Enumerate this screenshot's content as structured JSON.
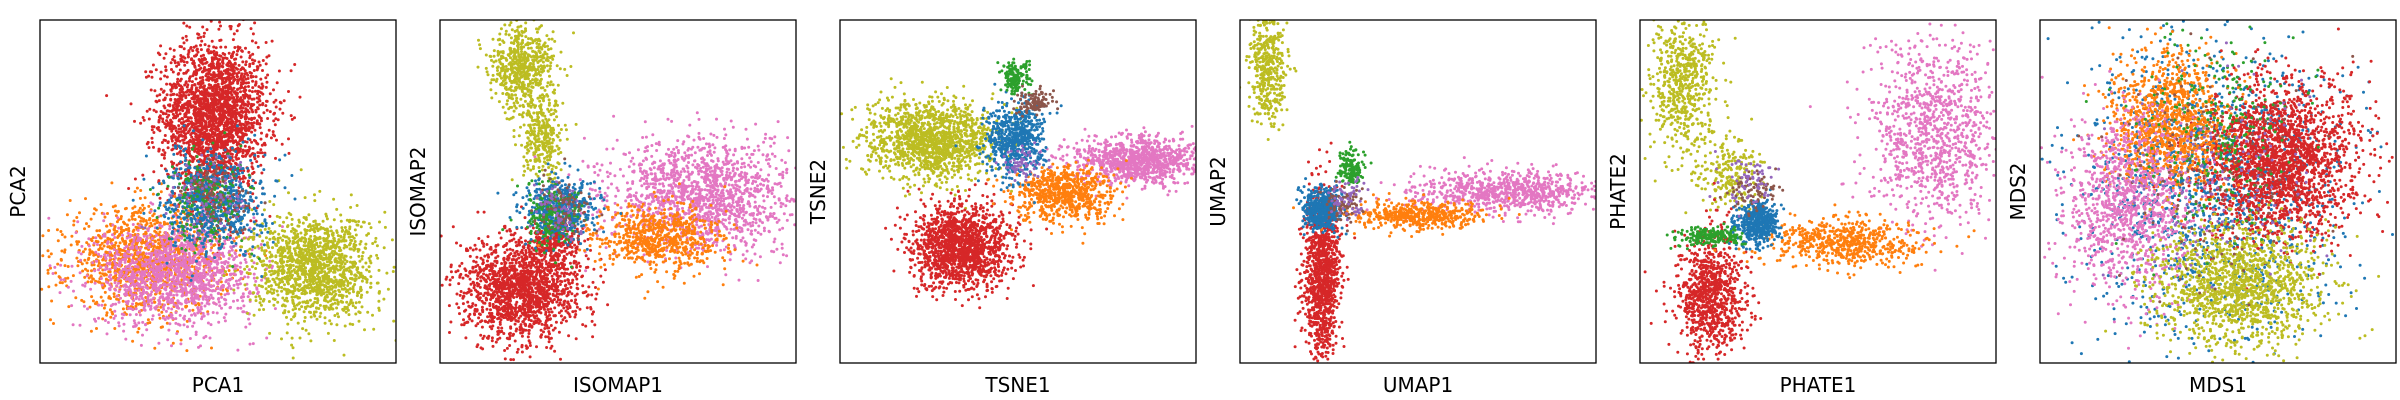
{
  "chart_data": [
    {
      "type": "scatter",
      "xlabel": "PCA1",
      "ylabel": "PCA2",
      "xlim": [
        0,
        10
      ],
      "ylim": [
        0,
        10
      ],
      "ticks": "none",
      "grid": false,
      "series": [
        {
          "color": "#d62728",
          "clusters": [
            {
              "cx": 4.9,
              "cy": 7.3,
              "sx": 0.75,
              "sy": 1.05,
              "n": 2200
            },
            {
              "cx": 4.8,
              "cy": 5.2,
              "sx": 0.5,
              "sy": 0.8,
              "n": 250
            }
          ]
        },
        {
          "color": "#ff7f0e",
          "clusters": [
            {
              "cx": 3.0,
              "cy": 3.0,
              "sx": 1.1,
              "sy": 0.75,
              "n": 1300
            }
          ]
        },
        {
          "color": "#e377c2",
          "clusters": [
            {
              "cx": 3.8,
              "cy": 2.6,
              "sx": 1.1,
              "sy": 0.75,
              "n": 1400
            }
          ]
        },
        {
          "color": "#bcbd22",
          "clusters": [
            {
              "cx": 7.7,
              "cy": 2.8,
              "sx": 0.85,
              "sy": 0.75,
              "n": 1400
            }
          ]
        },
        {
          "color": "#1f77b4",
          "clusters": [
            {
              "cx": 4.9,
              "cy": 4.7,
              "sx": 0.7,
              "sy": 0.7,
              "n": 700
            }
          ]
        },
        {
          "color": "#2ca02c",
          "clusters": [
            {
              "cx": 4.7,
              "cy": 4.8,
              "sx": 0.6,
              "sy": 0.7,
              "n": 180
            }
          ]
        },
        {
          "color": "#8c564b",
          "clusters": [
            {
              "cx": 5.0,
              "cy": 4.8,
              "sx": 0.5,
              "sy": 0.6,
              "n": 100
            }
          ]
        },
        {
          "color": "#9467bd",
          "clusters": [
            {
              "cx": 4.8,
              "cy": 4.9,
              "sx": 0.6,
              "sy": 0.6,
              "n": 80
            }
          ]
        }
      ]
    },
    {
      "type": "scatter",
      "xlabel": "ISOMAP1",
      "ylabel": "ISOMAP2",
      "xlim": [
        0,
        10
      ],
      "ylim": [
        0,
        10
      ],
      "ticks": "none",
      "grid": false,
      "series": [
        {
          "color": "#bcbd22",
          "clusters": [
            {
              "cx": 2.3,
              "cy": 8.6,
              "sx": 0.45,
              "sy": 0.6,
              "n": 600
            },
            {
              "cx": 2.9,
              "cy": 6.5,
              "sx": 0.3,
              "sy": 0.6,
              "n": 300
            }
          ]
        },
        {
          "color": "#d62728",
          "clusters": [
            {
              "cx": 2.3,
              "cy": 2.2,
              "sx": 0.8,
              "sy": 0.75,
              "n": 1600
            },
            {
              "cx": 3.3,
              "cy": 3.5,
              "sx": 0.35,
              "sy": 0.4,
              "n": 250
            }
          ]
        },
        {
          "color": "#e377c2",
          "clusters": [
            {
              "cx": 7.4,
              "cy": 4.9,
              "sx": 1.3,
              "sy": 0.8,
              "n": 1500
            }
          ]
        },
        {
          "color": "#ff7f0e",
          "clusters": [
            {
              "cx": 6.1,
              "cy": 3.6,
              "sx": 0.9,
              "sy": 0.5,
              "n": 700
            }
          ]
        },
        {
          "color": "#1f77b4",
          "clusters": [
            {
              "cx": 3.4,
              "cy": 4.5,
              "sx": 0.5,
              "sy": 0.45,
              "n": 500
            }
          ]
        },
        {
          "color": "#2ca02c",
          "clusters": [
            {
              "cx": 3.1,
              "cy": 4.3,
              "sx": 0.45,
              "sy": 0.5,
              "n": 180
            }
          ]
        },
        {
          "color": "#8c564b",
          "clusters": [
            {
              "cx": 3.5,
              "cy": 4.6,
              "sx": 0.4,
              "sy": 0.4,
              "n": 80
            }
          ]
        },
        {
          "color": "#9467bd",
          "clusters": [
            {
              "cx": 3.3,
              "cy": 4.4,
              "sx": 0.4,
              "sy": 0.4,
              "n": 60
            }
          ]
        }
      ]
    },
    {
      "type": "scatter",
      "xlabel": "TSNE1",
      "ylabel": "TSNE2",
      "xlim": [
        0,
        10
      ],
      "ylim": [
        0,
        10
      ],
      "ticks": "none",
      "grid": false,
      "series": [
        {
          "color": "#bcbd22",
          "clusters": [
            {
              "cx": 2.6,
              "cy": 6.5,
              "sx": 0.9,
              "sy": 0.55,
              "n": 1400
            }
          ]
        },
        {
          "color": "#d62728",
          "clusters": [
            {
              "cx": 3.4,
              "cy": 3.4,
              "sx": 0.7,
              "sy": 0.6,
              "n": 1500
            }
          ]
        },
        {
          "color": "#e377c2",
          "clusters": [
            {
              "cx": 8.3,
              "cy": 5.9,
              "sx": 0.9,
              "sy": 0.35,
              "n": 1000
            }
          ]
        },
        {
          "color": "#ff7f0e",
          "clusters": [
            {
              "cx": 6.3,
              "cy": 4.9,
              "sx": 0.7,
              "sy": 0.4,
              "n": 700
            }
          ]
        },
        {
          "color": "#1f77b4",
          "clusters": [
            {
              "cx": 4.9,
              "cy": 6.5,
              "sx": 0.4,
              "sy": 0.55,
              "n": 600
            }
          ]
        },
        {
          "color": "#2ca02c",
          "clusters": [
            {
              "cx": 4.9,
              "cy": 8.3,
              "sx": 0.2,
              "sy": 0.25,
              "n": 150
            }
          ]
        },
        {
          "color": "#8c564b",
          "clusters": [
            {
              "cx": 5.5,
              "cy": 7.6,
              "sx": 0.25,
              "sy": 0.2,
              "n": 100
            }
          ]
        },
        {
          "color": "#9467bd",
          "clusters": [
            {
              "cx": 5.1,
              "cy": 5.8,
              "sx": 0.3,
              "sy": 0.25,
              "n": 60
            }
          ]
        }
      ]
    },
    {
      "type": "scatter",
      "xlabel": "UMAP1",
      "ylabel": "UMAP2",
      "xlim": [
        0,
        10
      ],
      "ylim": [
        0,
        10
      ],
      "ticks": "none",
      "grid": false,
      "series": [
        {
          "color": "#bcbd22",
          "clusters": [
            {
              "cx": 0.8,
              "cy": 8.6,
              "sx": 0.25,
              "sy": 0.8,
              "n": 400
            }
          ]
        },
        {
          "color": "#d62728",
          "clusters": [
            {
              "cx": 2.3,
              "cy": 2.6,
              "sx": 0.25,
              "sy": 1.2,
              "n": 1100
            }
          ]
        },
        {
          "color": "#e377c2",
          "clusters": [
            {
              "cx": 7.6,
              "cy": 5.0,
              "sx": 1.4,
              "sy": 0.3,
              "n": 800
            }
          ]
        },
        {
          "color": "#ff7f0e",
          "clusters": [
            {
              "cx": 5.0,
              "cy": 4.3,
              "sx": 0.9,
              "sy": 0.2,
              "n": 500
            }
          ]
        },
        {
          "color": "#1f77b4",
          "clusters": [
            {
              "cx": 2.3,
              "cy": 4.5,
              "sx": 0.25,
              "sy": 0.3,
              "n": 500
            }
          ]
        },
        {
          "color": "#2ca02c",
          "clusters": [
            {
              "cx": 3.1,
              "cy": 5.7,
              "sx": 0.2,
              "sy": 0.25,
              "n": 150
            }
          ]
        },
        {
          "color": "#8c564b",
          "clusters": [
            {
              "cx": 3.0,
              "cy": 4.6,
              "sx": 0.25,
              "sy": 0.25,
              "n": 80
            }
          ]
        },
        {
          "color": "#9467bd",
          "clusters": [
            {
              "cx": 3.0,
              "cy": 4.8,
              "sx": 0.3,
              "sy": 0.3,
              "n": 60
            }
          ]
        }
      ]
    },
    {
      "type": "scatter",
      "xlabel": "PHATE1",
      "ylabel": "PHATE2",
      "xlim": [
        0,
        10
      ],
      "ylim": [
        0,
        10
      ],
      "ticks": "none",
      "grid": false,
      "series": [
        {
          "color": "#bcbd22",
          "clusters": [
            {
              "cx": 1.2,
              "cy": 8.2,
              "sx": 0.45,
              "sy": 1.1,
              "n": 600
            },
            {
              "cx": 2.5,
              "cy": 5.5,
              "sx": 0.45,
              "sy": 0.5,
              "n": 200
            }
          ]
        },
        {
          "color": "#d62728",
          "clusters": [
            {
              "cx": 2.0,
              "cy": 2.0,
              "sx": 0.45,
              "sy": 0.9,
              "n": 900
            }
          ]
        },
        {
          "color": "#e377c2",
          "clusters": [
            {
              "cx": 8.3,
              "cy": 6.6,
              "sx": 0.9,
              "sy": 1.3,
              "n": 1000
            }
          ]
        },
        {
          "color": "#ff7f0e",
          "clusters": [
            {
              "cx": 5.8,
              "cy": 3.5,
              "sx": 1.1,
              "sy": 0.35,
              "n": 600
            }
          ]
        },
        {
          "color": "#1f77b4",
          "clusters": [
            {
              "cx": 3.3,
              "cy": 4.1,
              "sx": 0.3,
              "sy": 0.3,
              "n": 500
            }
          ]
        },
        {
          "color": "#2ca02c",
          "clusters": [
            {
              "cx": 2.0,
              "cy": 3.7,
              "sx": 0.45,
              "sy": 0.15,
              "n": 200
            }
          ]
        },
        {
          "color": "#8c564b",
          "clusters": [
            {
              "cx": 3.2,
              "cy": 5.0,
              "sx": 0.35,
              "sy": 0.3,
              "n": 80
            }
          ]
        },
        {
          "color": "#9467bd",
          "clusters": [
            {
              "cx": 3.0,
              "cy": 5.2,
              "sx": 0.4,
              "sy": 0.4,
              "n": 60
            }
          ]
        }
      ]
    },
    {
      "type": "scatter",
      "xlabel": "MDS1",
      "ylabel": "MDS2",
      "xlim": [
        0,
        10
      ],
      "ylim": [
        0,
        10
      ],
      "ticks": "none",
      "grid": false,
      "series": [
        {
          "color": "#1f77b4",
          "clusters": [
            {
              "cx": 4.9,
              "cy": 5.2,
              "sx": 1.9,
              "sy": 2.1,
              "n": 1400
            }
          ]
        },
        {
          "color": "#d62728",
          "clusters": [
            {
              "cx": 6.7,
              "cy": 5.9,
              "sx": 1.1,
              "sy": 1.1,
              "n": 2200
            }
          ]
        },
        {
          "color": "#ff7f0e",
          "clusters": [
            {
              "cx": 3.6,
              "cy": 7.1,
              "sx": 0.8,
              "sy": 1.0,
              "n": 1100
            }
          ]
        },
        {
          "color": "#e377c2",
          "clusters": [
            {
              "cx": 2.5,
              "cy": 4.6,
              "sx": 0.9,
              "sy": 1.3,
              "n": 1100
            }
          ]
        },
        {
          "color": "#bcbd22",
          "clusters": [
            {
              "cx": 5.6,
              "cy": 2.2,
              "sx": 1.2,
              "sy": 0.85,
              "n": 1400
            }
          ]
        },
        {
          "color": "#2ca02c",
          "clusters": [
            {
              "cx": 5.0,
              "cy": 6.8,
              "sx": 1.1,
              "sy": 1.5,
              "n": 250
            }
          ]
        },
        {
          "color": "#8c564b",
          "clusters": [
            {
              "cx": 4.7,
              "cy": 5.5,
              "sx": 1.3,
              "sy": 1.6,
              "n": 120
            }
          ]
        },
        {
          "color": "#9467bd",
          "clusters": [
            {
              "cx": 4.8,
              "cy": 5.8,
              "sx": 1.3,
              "sy": 1.5,
              "n": 120
            }
          ]
        }
      ]
    }
  ]
}
